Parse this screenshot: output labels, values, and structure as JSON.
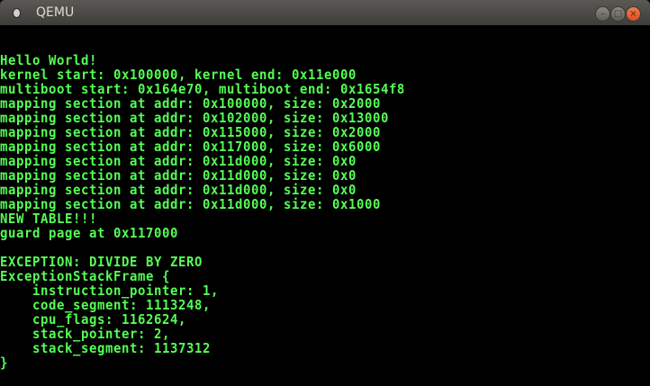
{
  "window": {
    "title": "QEMU",
    "minimize": "–",
    "maximize": "□",
    "close": "×"
  },
  "terminal": {
    "text_color": "#55ff55",
    "lines": [
      "",
      "",
      "Hello World!",
      "kernel start: 0x100000, kernel end: 0x11e000",
      "multiboot start: 0x164e70, multiboot end: 0x1654f8",
      "mapping section at addr: 0x100000, size: 0x2000",
      "mapping section at addr: 0x102000, size: 0x13000",
      "mapping section at addr: 0x115000, size: 0x2000",
      "mapping section at addr: 0x117000, size: 0x6000",
      "mapping section at addr: 0x11d000, size: 0x0",
      "mapping section at addr: 0x11d000, size: 0x0",
      "mapping section at addr: 0x11d000, size: 0x0",
      "mapping section at addr: 0x11d000, size: 0x1000",
      "NEW TABLE!!!",
      "guard page at 0x117000",
      "",
      "EXCEPTION: DIVIDE BY ZERO",
      "ExceptionStackFrame {",
      "    instruction_pointer: 1,",
      "    code_segment: 1113248,",
      "    cpu_flags: 1162624,",
      "    stack_pointer: 2,",
      "    stack_segment: 1137312",
      "}"
    ]
  }
}
